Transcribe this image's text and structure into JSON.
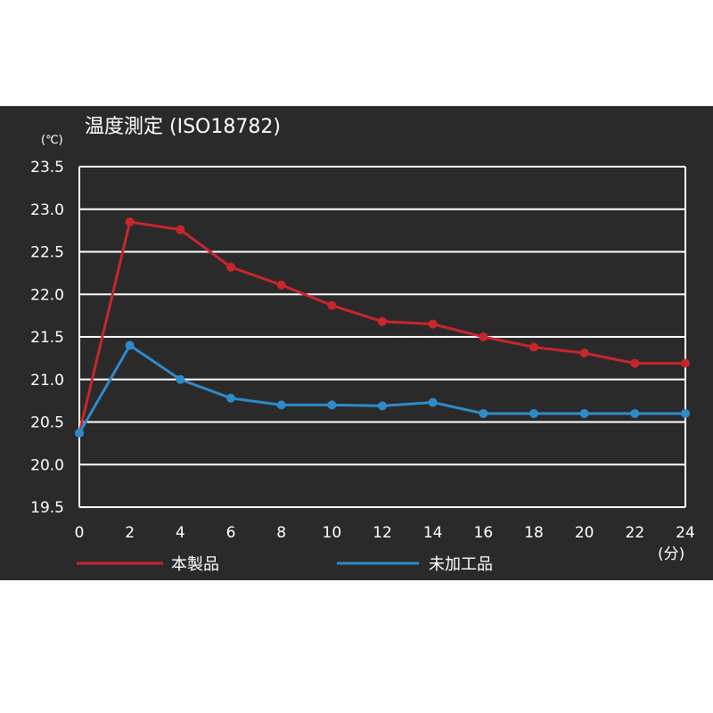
{
  "chart_data": {
    "type": "line",
    "title": "温度測定 (ISO18782)",
    "y_unit": "(℃)",
    "x_unit": "(分)",
    "x": [
      0,
      2,
      4,
      6,
      8,
      10,
      12,
      14,
      16,
      18,
      20,
      22,
      24
    ],
    "xlim": [
      0,
      24
    ],
    "ylim": [
      19.5,
      23.5
    ],
    "y_ticks": [
      "23.5",
      "23.0",
      "22.5",
      "22.0",
      "21.5",
      "21.0",
      "20.5",
      "20.0",
      "19.5"
    ],
    "x_ticks": [
      "0",
      "2",
      "4",
      "6",
      "8",
      "10",
      "12",
      "14",
      "16",
      "18",
      "20",
      "22",
      "24"
    ],
    "grid": true,
    "legend_position": "bottom",
    "series": [
      {
        "name": "本製品",
        "color": "#c8262c",
        "values": [
          20.37,
          22.85,
          22.76,
          22.32,
          22.11,
          21.87,
          21.68,
          21.65,
          21.5,
          21.38,
          21.31,
          21.19,
          21.19
        ]
      },
      {
        "name": "未加工品",
        "color": "#2e8bc9",
        "values": [
          20.37,
          21.4,
          21.0,
          20.78,
          20.7,
          20.7,
          20.69,
          20.73,
          20.6,
          20.6,
          20.6,
          20.6,
          20.6
        ]
      }
    ]
  }
}
